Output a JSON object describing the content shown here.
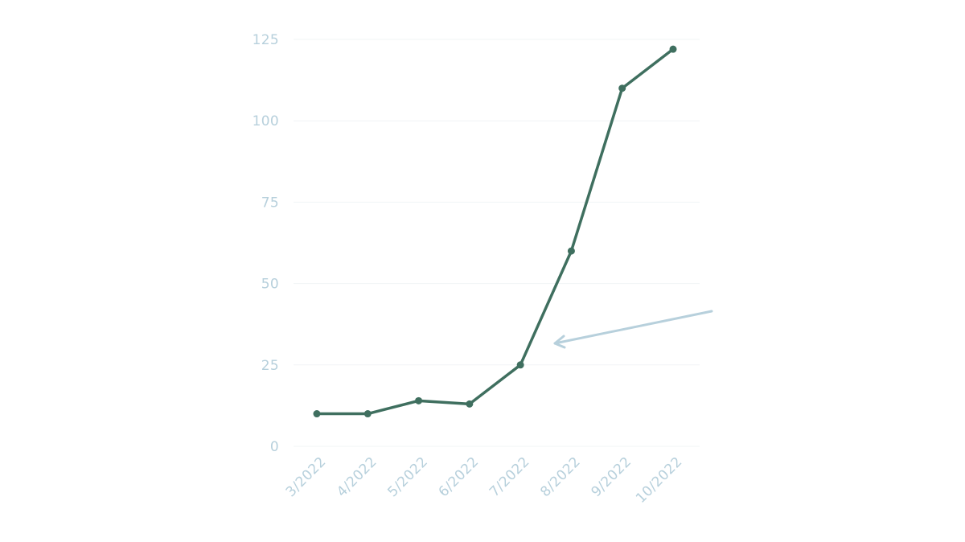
{
  "chart_data": {
    "type": "line",
    "title": "",
    "xlabel": "",
    "ylabel": "",
    "categories": [
      "3/2022",
      "4/2022",
      "5/2022",
      "6/2022",
      "7/2022",
      "8/2022",
      "9/2022",
      "10/2022"
    ],
    "series": [
      {
        "values": [
          10,
          10,
          14,
          13,
          25,
          60,
          110,
          122
        ]
      }
    ],
    "ylim": [
      0,
      125
    ],
    "yticks": [
      0,
      25,
      50,
      75,
      100,
      125
    ],
    "grid": true,
    "legend": "none",
    "colors": {
      "line": "#3f6f5f",
      "axis_text": "#b7d0dc",
      "grid": "#f1f4f6",
      "arrow": "#b7d0dc"
    }
  }
}
